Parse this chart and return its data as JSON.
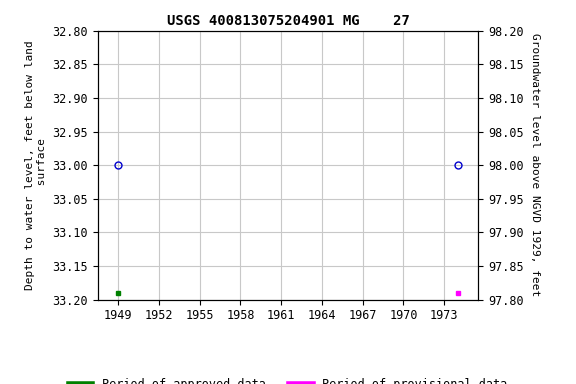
{
  "title": "USGS 400813075204901 MG    27",
  "ylabel_left": "Depth to water level, feet below land\n surface",
  "ylabel_right": "Groundwater level above NGVD 1929, feet",
  "ylim_left": [
    33.2,
    32.8
  ],
  "ylim_right": [
    97.8,
    98.2
  ],
  "xlim": [
    1947.5,
    1975.5
  ],
  "xticks": [
    1949,
    1952,
    1955,
    1958,
    1961,
    1964,
    1967,
    1970,
    1973
  ],
  "yticks_left": [
    32.8,
    32.85,
    32.9,
    32.95,
    33.0,
    33.05,
    33.1,
    33.15,
    33.2
  ],
  "yticks_right": [
    98.2,
    98.15,
    98.1,
    98.05,
    98.0,
    97.95,
    97.9,
    97.85,
    97.8
  ],
  "approved_points_x": [
    1949
  ],
  "approved_points_y": [
    33.0
  ],
  "provisional_points_x": [
    1974
  ],
  "provisional_points_y": [
    33.0
  ],
  "approved_squares_x": [
    1949
  ],
  "approved_squares_y": [
    33.19
  ],
  "provisional_squares_x": [
    1974
  ],
  "provisional_squares_y": [
    33.19
  ],
  "approved_color": "#008000",
  "provisional_color": "#ff00ff",
  "point_color": "#0000cd",
  "bg_color": "#ffffff",
  "grid_color": "#c8c8c8",
  "font_family": "monospace",
  "title_fontsize": 10,
  "label_fontsize": 8,
  "tick_fontsize": 8.5,
  "legend_fontsize": 8.5
}
